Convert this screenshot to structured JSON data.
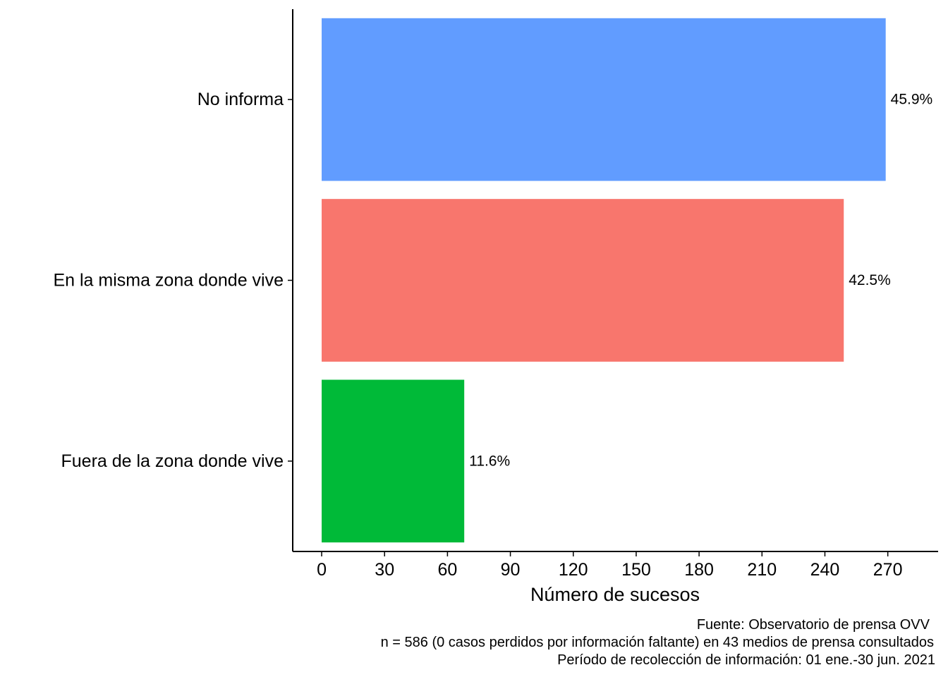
{
  "chart_data": {
    "type": "bar",
    "orientation": "horizontal",
    "categories": [
      "No informa",
      "En la misma zona donde vive",
      "Fuera de la zona donde vive"
    ],
    "values": [
      269,
      249,
      68
    ],
    "data_labels": [
      "45.9%",
      "42.5%",
      "11.6%"
    ],
    "colors": [
      "#619CFF",
      "#F8766D",
      "#00BA38"
    ],
    "xlabel": "Número de sucesos",
    "ylabel": "",
    "x_ticks": [
      0,
      30,
      60,
      90,
      120,
      150,
      180,
      210,
      240,
      270
    ],
    "xlim": [
      -13.8,
      294
    ],
    "grid": false,
    "legend": "none"
  },
  "caption": {
    "lines": [
      "Fuente: Observatorio de prensa OVV",
      "n = 586 (0 casos perdidos por información faltante) en 43 medios de prensa consultados",
      "Período de recolección de información: 01 ene.-30 jun. 2021"
    ]
  }
}
